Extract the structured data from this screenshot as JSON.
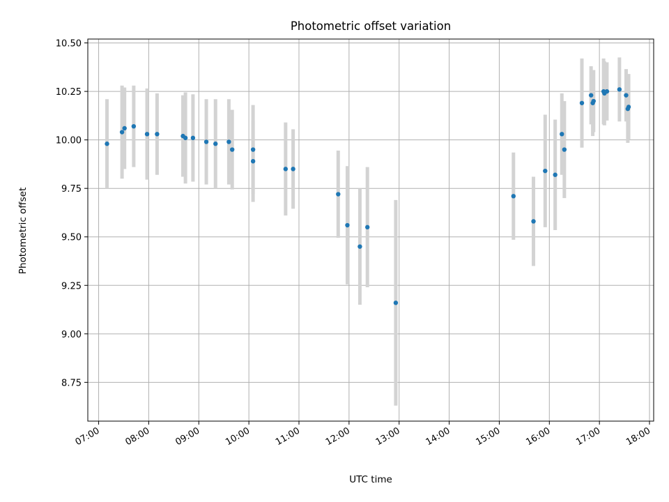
{
  "chart_data": {
    "type": "scatter",
    "title": "Photometric offset variation",
    "xlabel": "UTC time",
    "ylabel": "Photometric offset",
    "grid": true,
    "x_ticks": [
      "07:00",
      "08:00",
      "09:00",
      "10:00",
      "11:00",
      "12:00",
      "13:00",
      "14:00",
      "15:00",
      "16:00",
      "17:00",
      "18:00"
    ],
    "x_range": [
      "06:47",
      "18:05"
    ],
    "y_ticks": [
      "8.75",
      "9.00",
      "9.25",
      "9.50",
      "9.75",
      "10.00",
      "10.25",
      "10.50"
    ],
    "ylim": [
      8.55,
      10.52
    ],
    "colors": {
      "marker": "#1f77b4",
      "errorbar": "#d3d3d3"
    },
    "series": [
      {
        "points": [
          {
            "x": "07:10",
            "y": 9.98,
            "err": 0.23
          },
          {
            "x": "07:28",
            "y": 10.04,
            "err": 0.24
          },
          {
            "x": "07:31",
            "y": 10.06,
            "err": 0.21
          },
          {
            "x": "07:42",
            "y": 10.07,
            "err": 0.21
          },
          {
            "x": "07:58",
            "y": 10.03,
            "err": 0.235
          },
          {
            "x": "08:10",
            "y": 10.03,
            "err": 0.21
          },
          {
            "x": "08:41",
            "y": 10.02,
            "err": 0.21
          },
          {
            "x": "08:44",
            "y": 10.01,
            "err": 0.235
          },
          {
            "x": "08:53",
            "y": 10.01,
            "err": 0.225
          },
          {
            "x": "09:09",
            "y": 9.99,
            "err": 0.22
          },
          {
            "x": "09:20",
            "y": 9.98,
            "err": 0.23
          },
          {
            "x": "09:36",
            "y": 9.99,
            "err": 0.22
          },
          {
            "x": "09:40",
            "y": 9.95,
            "err": 0.205
          },
          {
            "x": "10:05",
            "y": 9.95,
            "err": 0.23
          },
          {
            "x": "10:05",
            "y": 9.89,
            "err": 0.21
          },
          {
            "x": "10:44",
            "y": 9.85,
            "err": 0.24
          },
          {
            "x": "10:53",
            "y": 9.85,
            "err": 0.205
          },
          {
            "x": "11:47",
            "y": 9.72,
            "err": 0.225
          },
          {
            "x": "11:58",
            "y": 9.56,
            "err": 0.305
          },
          {
            "x": "12:13",
            "y": 9.45,
            "err": 0.3
          },
          {
            "x": "12:22",
            "y": 9.55,
            "err": 0.31
          },
          {
            "x": "12:56",
            "y": 9.16,
            "err": 0.53
          },
          {
            "x": "15:17",
            "y": 9.71,
            "err": 0.225
          },
          {
            "x": "15:41",
            "y": 9.58,
            "err": 0.23
          },
          {
            "x": "15:55",
            "y": 9.84,
            "err": 0.29
          },
          {
            "x": "16:07",
            "y": 9.82,
            "err": 0.285
          },
          {
            "x": "16:15",
            "y": 10.03,
            "err": 0.21
          },
          {
            "x": "16:18",
            "y": 9.95,
            "err": 0.25
          },
          {
            "x": "16:39",
            "y": 10.19,
            "err": 0.23
          },
          {
            "x": "16:50",
            "y": 10.23,
            "err": 0.15
          },
          {
            "x": "16:52",
            "y": 10.19,
            "err": 0.17
          },
          {
            "x": "16:53",
            "y": 10.2,
            "err": 0.16
          },
          {
            "x": "17:05",
            "y": 10.25,
            "err": 0.17
          },
          {
            "x": "17:06",
            "y": 10.24,
            "err": 0.165
          },
          {
            "x": "17:09",
            "y": 10.25,
            "err": 0.15
          },
          {
            "x": "17:24",
            "y": 10.26,
            "err": 0.165
          },
          {
            "x": "17:32",
            "y": 10.23,
            "err": 0.135
          },
          {
            "x": "17:34",
            "y": 10.16,
            "err": 0.175
          },
          {
            "x": "17:35",
            "y": 10.17,
            "err": 0.17
          }
        ]
      }
    ]
  }
}
